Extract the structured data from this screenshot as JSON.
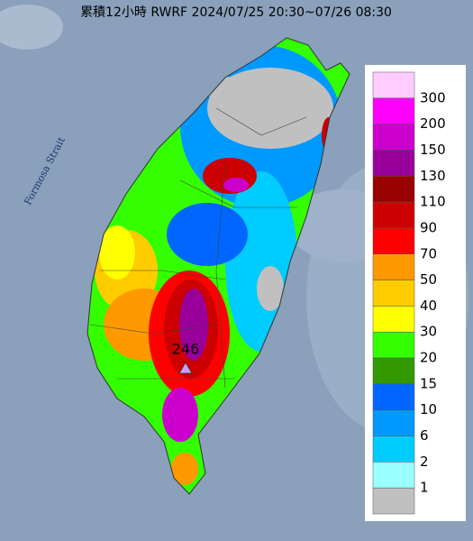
{
  "title": "累積12小時 RWRF 2024/07/25 20:30~07/26 08:30",
  "map_labels": {
    "strait": "Formosa Strait",
    "max_value": "246"
  },
  "legend": {
    "colors": [
      "#ffccff",
      "#ff00ff",
      "#cc00cc",
      "#990099",
      "#990000",
      "#cc0000",
      "#ff0000",
      "#ff9900",
      "#ffcc00",
      "#ffff00",
      "#33ff00",
      "#339900",
      "#0066ff",
      "#0099ff",
      "#00ccff",
      "#99ffff",
      "#c0c0c0"
    ],
    "labels": [
      300,
      200,
      150,
      130,
      110,
      90,
      70,
      50,
      40,
      30,
      20,
      15,
      10,
      6,
      2,
      1
    ]
  }
}
